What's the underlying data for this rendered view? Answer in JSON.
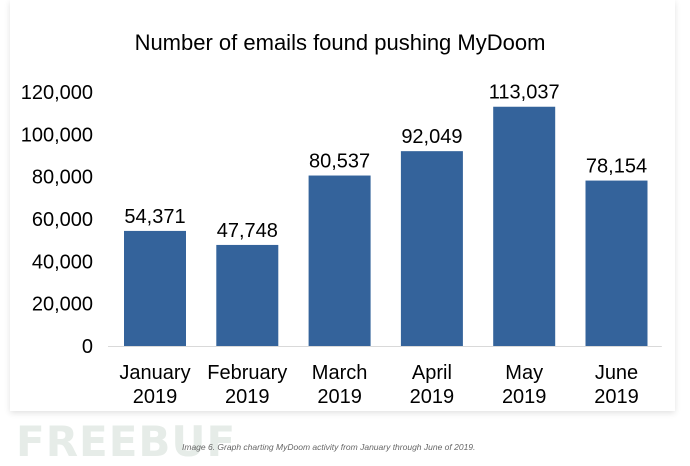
{
  "chart_data": {
    "type": "bar",
    "title": "Number of emails found pushing MyDoom",
    "categories": [
      [
        "January",
        "2019"
      ],
      [
        "February",
        "2019"
      ],
      [
        "March",
        "2019"
      ],
      [
        "April",
        "2019"
      ],
      [
        "May",
        "2019"
      ],
      [
        "June",
        "2019"
      ]
    ],
    "values": [
      54371,
      47748,
      80537,
      92049,
      113037,
      78154
    ],
    "data_labels": [
      "54,371",
      "47,748",
      "80,537",
      "92,049",
      "113,037",
      "78,154"
    ],
    "yticks": [
      "0",
      "20,000",
      "40,000",
      "60,000",
      "80,000",
      "100,000",
      "120,000"
    ],
    "ylim": [
      0,
      120000
    ],
    "grid": false,
    "legend": "none",
    "bar_color": "#34639b",
    "xlabel": "",
    "ylabel": ""
  },
  "caption": "Image 6. Graph charting MyDoom activity from January through June of 2019.",
  "watermark": "FREEBUF"
}
